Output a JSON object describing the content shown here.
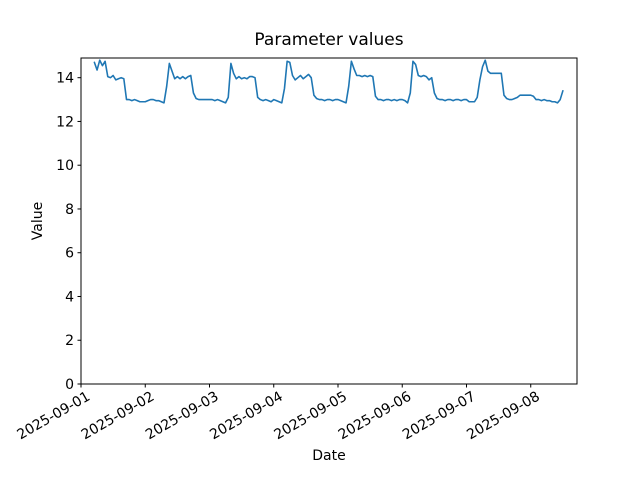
{
  "chart_data": {
    "type": "line",
    "title": "Parameter values",
    "xlabel": "Date",
    "ylabel": "Value",
    "ylim": [
      0,
      14.9
    ],
    "yticks": [
      0,
      2,
      4,
      6,
      8,
      10,
      12,
      14
    ],
    "xtick_labels": [
      "2025-09-01",
      "2025-09-02",
      "2025-09-03",
      "2025-09-04",
      "2025-09-05",
      "2025-09-06",
      "2025-09-07",
      "2025-09-08"
    ],
    "xlim_day_offsets": [
      0,
      7.72
    ],
    "grid": false,
    "legend": "none",
    "line_color": "#1f77b4",
    "series": [
      {
        "name": "parameter-values",
        "start": "2025-09-01 05:00",
        "start_hour_offset": 5,
        "interval_hours": 1,
        "values": [
          14.7,
          14.35,
          14.8,
          14.55,
          14.75,
          14.05,
          14.0,
          14.1,
          13.9,
          13.95,
          14.0,
          13.95,
          13.0,
          13.0,
          12.95,
          13.0,
          12.95,
          12.9,
          12.9,
          12.9,
          12.95,
          13.0,
          13.0,
          12.95,
          12.95,
          12.9,
          12.85,
          13.6,
          14.65,
          14.3,
          13.95,
          14.05,
          13.95,
          14.05,
          13.95,
          14.05,
          14.1,
          13.3,
          13.05,
          13.0,
          13.0,
          13.0,
          13.0,
          13.0,
          13.0,
          12.95,
          13.0,
          12.95,
          12.9,
          12.85,
          13.1,
          14.65,
          14.2,
          13.95,
          14.05,
          13.95,
          14.0,
          13.95,
          14.05,
          14.05,
          14.0,
          13.1,
          13.0,
          12.95,
          13.0,
          12.95,
          12.9,
          13.0,
          12.95,
          12.9,
          12.85,
          13.5,
          14.75,
          14.7,
          14.1,
          13.9,
          14.0,
          14.1,
          13.95,
          14.05,
          14.15,
          14.0,
          13.2,
          13.05,
          13.0,
          13.0,
          12.95,
          13.0,
          13.0,
          12.95,
          13.0,
          13.0,
          12.95,
          12.9,
          12.85,
          13.6,
          14.75,
          14.4,
          14.1,
          14.1,
          14.05,
          14.1,
          14.05,
          14.1,
          14.05,
          13.15,
          13.0,
          13.0,
          12.95,
          13.0,
          13.0,
          12.95,
          13.0,
          12.95,
          13.0,
          13.0,
          12.95,
          12.85,
          13.3,
          14.75,
          14.6,
          14.1,
          14.05,
          14.1,
          14.05,
          13.9,
          14.0,
          13.3,
          13.05,
          13.0,
          13.0,
          12.95,
          13.0,
          13.0,
          12.95,
          13.0,
          13.0,
          12.95,
          13.0,
          13.0,
          12.9,
          12.9,
          12.9,
          13.1,
          13.9,
          14.5,
          14.8,
          14.3,
          14.2,
          14.2,
          14.2,
          14.2,
          14.2,
          13.2,
          13.05,
          13.0,
          13.0,
          13.05,
          13.1,
          13.2,
          13.2,
          13.2,
          13.2,
          13.2,
          13.15,
          13.0,
          13.0,
          12.95,
          13.0,
          12.95,
          12.95,
          12.9,
          12.9,
          12.85,
          13.0,
          13.4
        ]
      }
    ]
  }
}
